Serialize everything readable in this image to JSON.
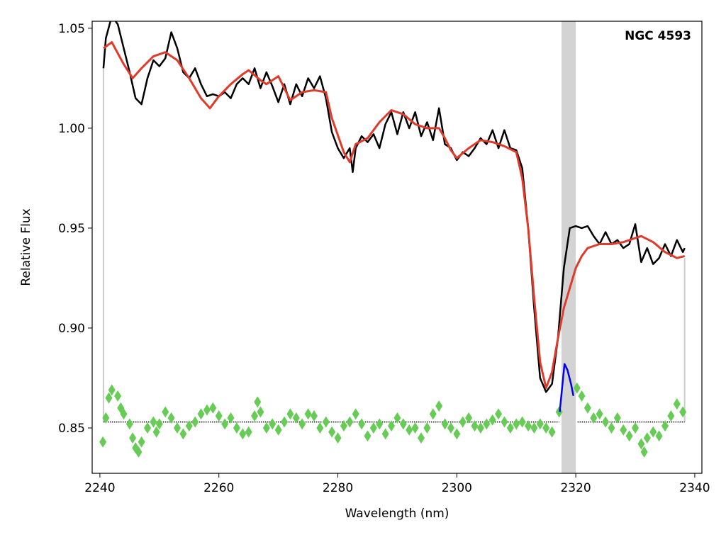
{
  "chart_data": {
    "type": "line",
    "annotation": "NGC 4593",
    "xlabel": "Wavelength (nm)",
    "ylabel": "Relative Flux",
    "xlim": [
      2238.7,
      2341.2
    ],
    "ylim": [
      0.8273,
      1.0535
    ],
    "xticks": [
      2240,
      2260,
      2280,
      2300,
      2320,
      2340
    ],
    "yticks": [
      0.85,
      {
        "value": 0.9,
        "label": "0.90"
      },
      0.95,
      {
        "value": 1,
        "label": "1.00"
      },
      1.05
    ],
    "span": [
      2317.6,
      2320.0
    ],
    "span_color": "#d3d3d3",
    "hline": {
      "y": 0.853,
      "segments": [
        [
          2240.6,
          2317.2
        ],
        [
          2320.3,
          2338.3
        ]
      ],
      "color": "#444444"
    },
    "edge_lines": [
      {
        "x": 2240.6,
        "y": [
          0.853,
          1.03
        ]
      },
      {
        "x": 2338.3,
        "y": [
          0.853,
          0.935
        ]
      }
    ],
    "series": [
      {
        "color": "#66cc55",
        "style": "markers",
        "x": [
          2240.5,
          2241,
          2241.5,
          2242,
          2243,
          2243.5,
          2244,
          2245,
          2245.5,
          2246,
          2246.5,
          2247,
          2248,
          2249,
          2249.5,
          2250,
          2251,
          2252,
          2253,
          2254,
          2255,
          2256,
          2257,
          2258,
          2259,
          2260,
          2261,
          2262,
          2263,
          2264,
          2265,
          2266,
          2266.5,
          2267,
          2268,
          2269,
          2270,
          2271,
          2272,
          2273,
          2274,
          2275,
          2276,
          2277,
          2278,
          2279,
          2280,
          2281,
          2282,
          2283,
          2284,
          2285,
          2286,
          2287,
          2288,
          2289,
          2290,
          2291,
          2292,
          2293,
          2294,
          2295,
          2296,
          2297,
          2298,
          2299,
          2300,
          2301,
          2302,
          2303,
          2304,
          2305,
          2306,
          2307,
          2308,
          2309,
          2310,
          2311,
          2312,
          2313,
          2314,
          2315,
          2316,
          2317.2,
          2320.2,
          2321,
          2322,
          2323,
          2324,
          2325,
          2326,
          2327,
          2328,
          2329,
          2330,
          2331,
          2331.5,
          2332,
          2333,
          2334,
          2335,
          2336,
          2337,
          2338
        ],
        "values": [
          0.843,
          0.855,
          0.865,
          0.869,
          0.866,
          0.86,
          0.857,
          0.852,
          0.845,
          0.84,
          0.838,
          0.843,
          0.85,
          0.853,
          0.848,
          0.852,
          0.858,
          0.855,
          0.85,
          0.847,
          0.851,
          0.853,
          0.857,
          0.859,
          0.86,
          0.856,
          0.852,
          0.855,
          0.85,
          0.847,
          0.848,
          0.856,
          0.863,
          0.858,
          0.85,
          0.852,
          0.849,
          0.853,
          0.857,
          0.855,
          0.852,
          0.857,
          0.856,
          0.85,
          0.853,
          0.848,
          0.845,
          0.851,
          0.853,
          0.857,
          0.852,
          0.846,
          0.85,
          0.852,
          0.847,
          0.851,
          0.855,
          0.852,
          0.849,
          0.85,
          0.845,
          0.85,
          0.857,
          0.861,
          0.852,
          0.85,
          0.847,
          0.853,
          0.855,
          0.851,
          0.85,
          0.852,
          0.854,
          0.857,
          0.853,
          0.85,
          0.852,
          0.853,
          0.851,
          0.85,
          0.852,
          0.85,
          0.848,
          0.858,
          0.87,
          0.866,
          0.86,
          0.855,
          0.857,
          0.853,
          0.85,
          0.855,
          0.849,
          0.846,
          0.85,
          0.842,
          0.838,
          0.845,
          0.848,
          0.846,
          0.851,
          0.856,
          0.862,
          0.858
        ]
      },
      {
        "color": "#000000",
        "style": "line",
        "x": [
          2240.6,
          2241,
          2242,
          2243,
          2244,
          2245,
          2246,
          2247,
          2248,
          2249,
          2250,
          2251,
          2252,
          2253,
          2254,
          2255,
          2256,
          2257,
          2258,
          2259,
          2260,
          2261,
          2262,
          2263,
          2264,
          2265,
          2266,
          2267,
          2268,
          2269,
          2270,
          2271,
          2272,
          2273,
          2274,
          2275,
          2276,
          2277,
          2278,
          2279,
          2280,
          2281,
          2282,
          2282.5,
          2283,
          2284,
          2285,
          2286,
          2287,
          2288,
          2289,
          2290,
          2291,
          2292,
          2293,
          2294,
          2295,
          2296,
          2297,
          2298,
          2299,
          2300,
          2301,
          2302,
          2303,
          2304,
          2305,
          2306,
          2307,
          2308,
          2309,
          2310,
          2311,
          2312,
          2313,
          2314,
          2315,
          2316,
          2317,
          2318,
          2319,
          2320,
          2321,
          2322,
          2323,
          2324,
          2325,
          2326,
          2327,
          2328,
          2329,
          2330,
          2331,
          2332,
          2333,
          2334,
          2335,
          2336,
          2337,
          2338,
          2338.3
        ],
        "values": [
          1.03,
          1.045,
          1.056,
          1.052,
          1.04,
          1.028,
          1.015,
          1.012,
          1.025,
          1.034,
          1.031,
          1.035,
          1.048,
          1.04,
          1.028,
          1.025,
          1.03,
          1.022,
          1.016,
          1.017,
          1.016,
          1.018,
          1.015,
          1.022,
          1.025,
          1.022,
          1.03,
          1.02,
          1.028,
          1.021,
          1.013,
          1.022,
          1.012,
          1.022,
          1.016,
          1.025,
          1.02,
          1.026,
          1.015,
          0.998,
          0.99,
          0.985,
          0.99,
          0.978,
          0.99,
          0.996,
          0.993,
          0.997,
          0.99,
          1.002,
          1.008,
          0.997,
          1.008,
          1.0,
          1.008,
          0.996,
          1.003,
          0.994,
          1.01,
          0.992,
          0.99,
          0.984,
          0.988,
          0.986,
          0.99,
          0.995,
          0.992,
          0.999,
          0.99,
          0.999,
          0.99,
          0.989,
          0.98,
          0.95,
          0.91,
          0.875,
          0.868,
          0.872,
          0.895,
          0.93,
          0.95,
          0.951,
          0.95,
          0.951,
          0.946,
          0.942,
          0.948,
          0.942,
          0.944,
          0.94,
          0.942,
          0.952,
          0.933,
          0.94,
          0.932,
          0.935,
          0.942,
          0.936,
          0.944,
          0.938,
          0.94
        ]
      },
      {
        "color": "#e03a2a",
        "style": "line",
        "x": [
          2240.6,
          2242,
          2244,
          2245.5,
          2247,
          2249,
          2251,
          2253,
          2255,
          2257,
          2258.5,
          2260,
          2262,
          2264,
          2265,
          2267,
          2268,
          2270,
          2272,
          2274,
          2276,
          2278,
          2279,
          2281,
          2282,
          2283,
          2285,
          2287,
          2289,
          2291,
          2293,
          2295,
          2297,
          2298,
          2299,
          2300,
          2302,
          2304,
          2306,
          2308,
          2310,
          2311,
          2312,
          2313,
          2314,
          2315,
          2316,
          2317,
          2318,
          2319,
          2320,
          2321,
          2322,
          2324,
          2326,
          2328,
          2330,
          2331,
          2333,
          2335,
          2337,
          2338.3
        ],
        "values": [
          1.04,
          1.043,
          1.032,
          1.025,
          1.03,
          1.036,
          1.038,
          1.034,
          1.025,
          1.015,
          1.01,
          1.016,
          1.022,
          1.027,
          1.029,
          1.024,
          1.022,
          1.026,
          1.014,
          1.018,
          1.019,
          1.018,
          1.005,
          0.988,
          0.983,
          0.992,
          0.995,
          1.003,
          1.009,
          1.007,
          1.002,
          1.0,
          1.0,
          0.995,
          0.989,
          0.985,
          0.99,
          0.994,
          0.993,
          0.991,
          0.988,
          0.975,
          0.95,
          0.915,
          0.883,
          0.87,
          0.878,
          0.895,
          0.91,
          0.92,
          0.93,
          0.936,
          0.94,
          0.942,
          0.942,
          0.943,
          0.945,
          0.946,
          0.943,
          0.938,
          0.935,
          0.936
        ]
      },
      {
        "color": "#0000ee",
        "style": "line",
        "x": [
          2317.3,
          2317.7,
          2318.1,
          2318.6,
          2319.2,
          2319.6
        ],
        "values": [
          0.858,
          0.87,
          0.882,
          0.879,
          0.872,
          0.866
        ]
      }
    ]
  }
}
